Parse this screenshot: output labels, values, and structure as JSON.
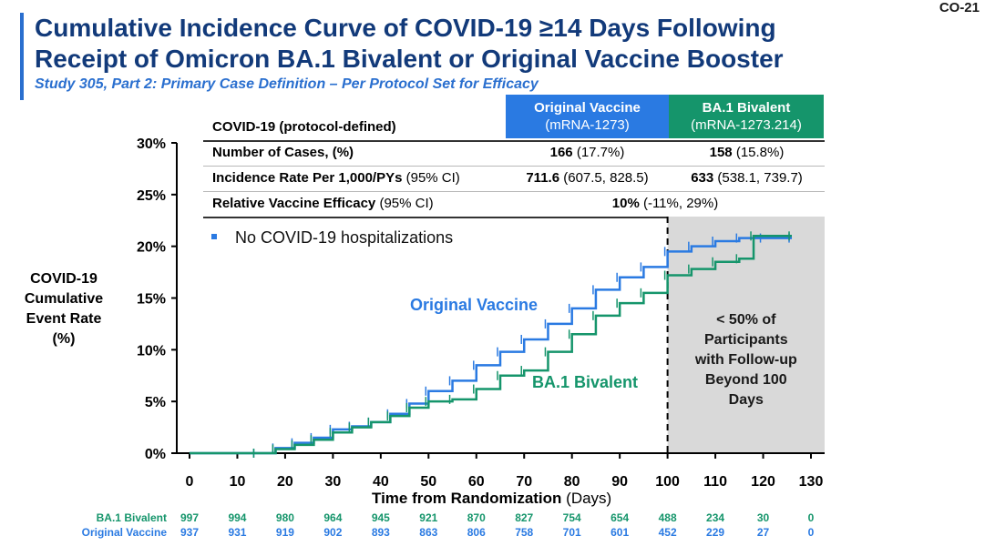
{
  "slide_id": "CO-21",
  "title_line1": "Cumulative Incidence Curve of COVID-19 ≥14 Days Following",
  "title_line2": "Receipt of Omicron BA.1 Bivalent or Original Vaccine Booster",
  "subtitle": "Study 305, Part 2: Primary Case Definition – Per Protocol Set for Efficacy",
  "table": {
    "header_label": "COVID-19 (protocol-defined)",
    "col1_title": "Original Vaccine",
    "col1_sub": "(mRNA-1273)",
    "col2_title": "BA.1 Bivalent",
    "col2_sub": "(mRNA-1273.214)",
    "row1_label": "Number of Cases, (%)",
    "row1_c1_bold": "166",
    "row1_c1_rest": " (17.7%)",
    "row1_c2_bold": "158",
    "row1_c2_rest": " (15.8%)",
    "row2_label_bold": "Incidence Rate Per 1,000/PYs",
    "row2_label_rest": " (95% CI)",
    "row2_c1_bold": "711.6",
    "row2_c1_rest": " (607.5, 828.5)",
    "row2_c2_bold": "633",
    "row2_c2_rest": " (538.1, 739.7)",
    "row3_label_bold": "Relative Vaccine Efficacy",
    "row3_label_rest": " (95% CI)",
    "row3_bold": "10%",
    "row3_rest": " (-11%, 29%)"
  },
  "ylabel_lines": [
    "COVID-19",
    "Cumulative",
    "Event Rate",
    "(%)"
  ],
  "xlabel_bold": "Time from Randomization",
  "xlabel_rest": " (Days)",
  "colors": {
    "original": "#2a7ae2",
    "bivalent": "#15956b",
    "title": "#123a7a",
    "shade": "#d9d9d9"
  },
  "chart_data": {
    "type": "line",
    "step": true,
    "xlim": [
      0,
      130
    ],
    "ylim": [
      0,
      30
    ],
    "xticks": [
      0,
      10,
      20,
      30,
      40,
      50,
      60,
      70,
      80,
      90,
      100,
      110,
      120,
      130
    ],
    "yticks": [
      "0%",
      "5%",
      "10%",
      "15%",
      "20%",
      "25%",
      "30%"
    ],
    "yticks_values": [
      0,
      5,
      10,
      15,
      20,
      25,
      30
    ],
    "legend_text": "No COVID-19 hospitalizations",
    "shaded_region": {
      "x_start": 100,
      "x_end": 130,
      "text": [
        "< 50% of",
        "Participants",
        "with Follow-up",
        "Beyond 100",
        "Days"
      ]
    },
    "series": [
      {
        "name": "Original Vaccine",
        "x": [
          0,
          14,
          18,
          22,
          26,
          30,
          34,
          38,
          42,
          46,
          50,
          55,
          60,
          65,
          70,
          75,
          80,
          85,
          90,
          95,
          100,
          105,
          110,
          115,
          120,
          126
        ],
        "y": [
          0,
          0,
          0.5,
          1,
          1.5,
          2.3,
          2.6,
          3,
          3.8,
          4.8,
          6,
          7,
          8.5,
          9.8,
          11,
          12.5,
          14,
          15.8,
          17,
          18,
          19.5,
          20,
          20.5,
          20.8,
          20.8,
          20.8
        ]
      },
      {
        "name": "BA.1 Bivalent",
        "x": [
          0,
          14,
          18,
          22,
          26,
          30,
          34,
          38,
          42,
          46,
          50,
          55,
          60,
          65,
          70,
          75,
          80,
          85,
          90,
          95,
          100,
          105,
          110,
          115,
          118,
          126
        ],
        "y": [
          0,
          0,
          0.4,
          0.8,
          1.3,
          2,
          2.5,
          3,
          3.6,
          4.4,
          5,
          5.2,
          6.2,
          7.5,
          8,
          9.8,
          11.5,
          13.3,
          14.5,
          15.5,
          17.2,
          17.8,
          18.5,
          18.8,
          21,
          21
        ]
      }
    ],
    "series_labels": [
      "Original Vaccine",
      "BA.1 Bivalent"
    ],
    "at_risk": {
      "labels": [
        "BA.1 Bivalent",
        "Original Vaccine"
      ],
      "bivalent": [
        "997",
        "994",
        "980",
        "964",
        "945",
        "921",
        "870",
        "827",
        "754",
        "654",
        "488",
        "234",
        "30",
        "0"
      ],
      "original": [
        "937",
        "931",
        "919",
        "902",
        "893",
        "863",
        "806",
        "758",
        "701",
        "601",
        "452",
        "229",
        "27",
        "0"
      ]
    }
  }
}
